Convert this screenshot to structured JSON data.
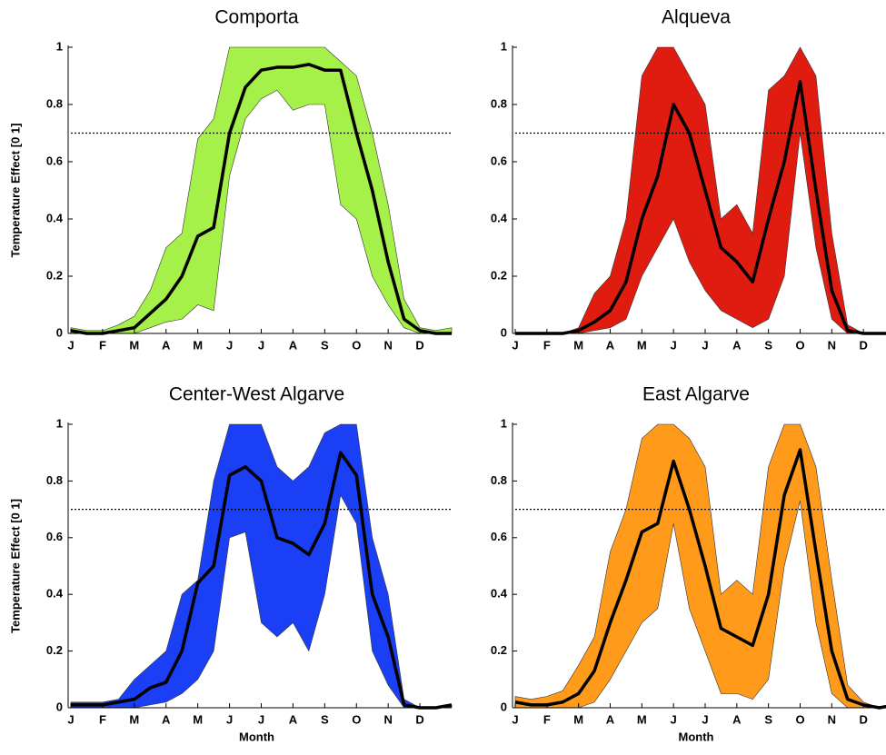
{
  "chart_data": [
    {
      "type": "line",
      "title": "Comporta",
      "y_label": "Temperature Effect [0 1]",
      "x": [
        0,
        0.5,
        1,
        1.5,
        2,
        2.5,
        3,
        3.5,
        4,
        4.5,
        5,
        5.5,
        6,
        6.5,
        7,
        7.5,
        8,
        8.5,
        9,
        9.5,
        10,
        10.5,
        11,
        11.5,
        12
      ],
      "values": [
        0.01,
        0,
        0,
        0.01,
        0.02,
        0.07,
        0.12,
        0.2,
        0.34,
        0.37,
        0.7,
        0.86,
        0.92,
        0.93,
        0.93,
        0.94,
        0.92,
        0.92,
        0.7,
        0.5,
        0.25,
        0.05,
        0.01,
        0,
        0
      ],
      "lower": [
        0,
        0,
        0,
        0,
        0,
        0.02,
        0.04,
        0.05,
        0.1,
        0.08,
        0.55,
        0.75,
        0.82,
        0.85,
        0.78,
        0.8,
        0.8,
        0.45,
        0.4,
        0.2,
        0.1,
        0.02,
        0,
        0,
        0
      ],
      "upper": [
        0.02,
        0.01,
        0.01,
        0.03,
        0.06,
        0.15,
        0.3,
        0.35,
        0.68,
        0.75,
        1,
        1,
        1,
        1,
        1,
        1,
        1,
        0.95,
        0.9,
        0.7,
        0.45,
        0.12,
        0.02,
        0.01,
        0.02
      ],
      "band_color": "#a6f04a",
      "line_color": "#000000",
      "threshold": 0.7,
      "xlim": [
        0,
        12
      ],
      "ylim": [
        0,
        1
      ],
      "xticks": [
        {
          "value": 0,
          "label": "J"
        },
        {
          "value": 1,
          "label": "F"
        },
        {
          "value": 2,
          "label": "M"
        },
        {
          "value": 3,
          "label": "A"
        },
        {
          "value": 4,
          "label": "M"
        },
        {
          "value": 5,
          "label": "J"
        },
        {
          "value": 6,
          "label": "J"
        },
        {
          "value": 7,
          "label": "A"
        },
        {
          "value": 8,
          "label": "S"
        },
        {
          "value": 9,
          "label": "O"
        },
        {
          "value": 10,
          "label": "N"
        },
        {
          "value": 11,
          "label": "D"
        }
      ],
      "yticks": [
        0,
        0.2,
        0.4,
        0.6,
        0.8,
        1
      ]
    },
    {
      "type": "line",
      "title": "Alqueva",
      "x": [
        0,
        0.5,
        1,
        1.5,
        2,
        2.5,
        3,
        3.5,
        4,
        4.5,
        5,
        5.5,
        6,
        6.5,
        7,
        7.5,
        8,
        8.5,
        9,
        9.5,
        10,
        10.5,
        11,
        11.5,
        12
      ],
      "values": [
        0,
        0,
        0,
        0,
        0.01,
        0.04,
        0.08,
        0.18,
        0.4,
        0.55,
        0.8,
        0.7,
        0.5,
        0.3,
        0.25,
        0.18,
        0.4,
        0.6,
        0.88,
        0.5,
        0.15,
        0.01,
        0,
        0,
        0
      ],
      "lower": [
        0,
        0,
        0,
        0,
        0,
        0.01,
        0.02,
        0.05,
        0.2,
        0.3,
        0.4,
        0.25,
        0.15,
        0.08,
        0.05,
        0.02,
        0.05,
        0.2,
        0.7,
        0.3,
        0.05,
        0,
        0,
        0,
        0
      ],
      "upper": [
        0,
        0,
        0,
        0,
        0.02,
        0.14,
        0.2,
        0.4,
        0.9,
        1,
        1,
        0.9,
        0.8,
        0.4,
        0.45,
        0.35,
        0.85,
        0.9,
        1,
        0.9,
        0.35,
        0.03,
        0,
        0,
        0
      ],
      "band_color": "#e01b10",
      "line_color": "#000000",
      "threshold": 0.7,
      "xlim": [
        0,
        12
      ],
      "ylim": [
        0,
        1
      ],
      "xticks": [
        {
          "value": 0,
          "label": "J"
        },
        {
          "value": 1,
          "label": "F"
        },
        {
          "value": 2,
          "label": "M"
        },
        {
          "value": 3,
          "label": "A"
        },
        {
          "value": 4,
          "label": "M"
        },
        {
          "value": 5,
          "label": "J"
        },
        {
          "value": 6,
          "label": "J"
        },
        {
          "value": 7,
          "label": "A"
        },
        {
          "value": 8,
          "label": "S"
        },
        {
          "value": 9,
          "label": "O"
        },
        {
          "value": 10,
          "label": "N"
        },
        {
          "value": 11,
          "label": "D"
        }
      ],
      "yticks": [
        0,
        0.2,
        0.4,
        0.6,
        0.8,
        1
      ]
    },
    {
      "type": "line",
      "title": "Center-West Algarve",
      "y_label": "Temperature Effect [0 1]",
      "x_label": "Month",
      "x": [
        0,
        0.5,
        1,
        1.5,
        2,
        2.5,
        3,
        3.5,
        4,
        4.5,
        5,
        5.5,
        6,
        6.5,
        7,
        7.5,
        8,
        8.5,
        9,
        9.5,
        10,
        10.5,
        11,
        11.5,
        12
      ],
      "values": [
        0.01,
        0.01,
        0.01,
        0.02,
        0.03,
        0.07,
        0.09,
        0.2,
        0.44,
        0.5,
        0.82,
        0.85,
        0.8,
        0.6,
        0.58,
        0.54,
        0.65,
        0.9,
        0.82,
        0.4,
        0.25,
        0.01,
        0,
        0,
        0.01
      ],
      "lower": [
        0,
        0,
        0,
        0,
        0,
        0.01,
        0.02,
        0.05,
        0.1,
        0.2,
        0.6,
        0.62,
        0.3,
        0.25,
        0.3,
        0.2,
        0.4,
        0.75,
        0.65,
        0.2,
        0.08,
        0,
        0,
        0,
        0
      ],
      "upper": [
        0.02,
        0.02,
        0.02,
        0.03,
        0.1,
        0.15,
        0.2,
        0.4,
        0.45,
        0.8,
        1,
        1,
        1,
        0.85,
        0.8,
        0.85,
        0.97,
        1,
        1,
        0.6,
        0.4,
        0.03,
        0,
        0,
        0.01
      ],
      "band_color": "#1a3ff5",
      "line_color": "#000000",
      "threshold": 0.7,
      "xlim": [
        0,
        12
      ],
      "ylim": [
        0,
        1
      ],
      "xticks": [
        {
          "value": 0,
          "label": "J"
        },
        {
          "value": 1,
          "label": "F"
        },
        {
          "value": 2,
          "label": "M"
        },
        {
          "value": 3,
          "label": "A"
        },
        {
          "value": 4,
          "label": "M"
        },
        {
          "value": 5,
          "label": "J"
        },
        {
          "value": 6,
          "label": "J"
        },
        {
          "value": 7,
          "label": "A"
        },
        {
          "value": 8,
          "label": "S"
        },
        {
          "value": 9,
          "label": "O"
        },
        {
          "value": 10,
          "label": "N"
        },
        {
          "value": 11,
          "label": "D"
        }
      ],
      "yticks": [
        0,
        0.2,
        0.4,
        0.6,
        0.8,
        1
      ]
    },
    {
      "type": "line",
      "title": "East Algarve",
      "x_label": "Month",
      "x": [
        0,
        0.5,
        1,
        1.5,
        2,
        2.5,
        3,
        3.5,
        4,
        4.5,
        5,
        5.5,
        6,
        6.5,
        7,
        7.5,
        8,
        8.5,
        9,
        9.5,
        10,
        10.5,
        11,
        11.5,
        12
      ],
      "values": [
        0.02,
        0.01,
        0.01,
        0.02,
        0.05,
        0.13,
        0.3,
        0.45,
        0.62,
        0.65,
        0.87,
        0.7,
        0.5,
        0.28,
        0.25,
        0.22,
        0.4,
        0.75,
        0.91,
        0.55,
        0.2,
        0.03,
        0.01,
        0,
        0.01
      ],
      "lower": [
        0,
        0,
        0,
        0,
        0,
        0.02,
        0.1,
        0.2,
        0.3,
        0.35,
        0.65,
        0.35,
        0.2,
        0.05,
        0.05,
        0.03,
        0.1,
        0.5,
        0.73,
        0.3,
        0.05,
        0,
        0,
        0,
        0
      ],
      "upper": [
        0.04,
        0.03,
        0.04,
        0.06,
        0.15,
        0.25,
        0.55,
        0.7,
        0.95,
        1,
        1,
        0.95,
        0.85,
        0.4,
        0.45,
        0.4,
        0.85,
        1,
        1,
        0.85,
        0.45,
        0.08,
        0.02,
        0,
        0.01
      ],
      "band_color": "#ff9a1a",
      "line_color": "#000000",
      "threshold": 0.7,
      "xlim": [
        0,
        12
      ],
      "ylim": [
        0,
        1
      ],
      "xticks": [
        {
          "value": 0,
          "label": "J"
        },
        {
          "value": 1,
          "label": "F"
        },
        {
          "value": 2,
          "label": "M"
        },
        {
          "value": 3,
          "label": "A"
        },
        {
          "value": 4,
          "label": "M"
        },
        {
          "value": 5,
          "label": "J"
        },
        {
          "value": 6,
          "label": "J"
        },
        {
          "value": 7,
          "label": "A"
        },
        {
          "value": 8,
          "label": "S"
        },
        {
          "value": 9,
          "label": "O"
        },
        {
          "value": 10,
          "label": "N"
        },
        {
          "value": 11,
          "label": "D"
        }
      ],
      "yticks": [
        0,
        0.2,
        0.4,
        0.6,
        0.8,
        1
      ]
    }
  ]
}
